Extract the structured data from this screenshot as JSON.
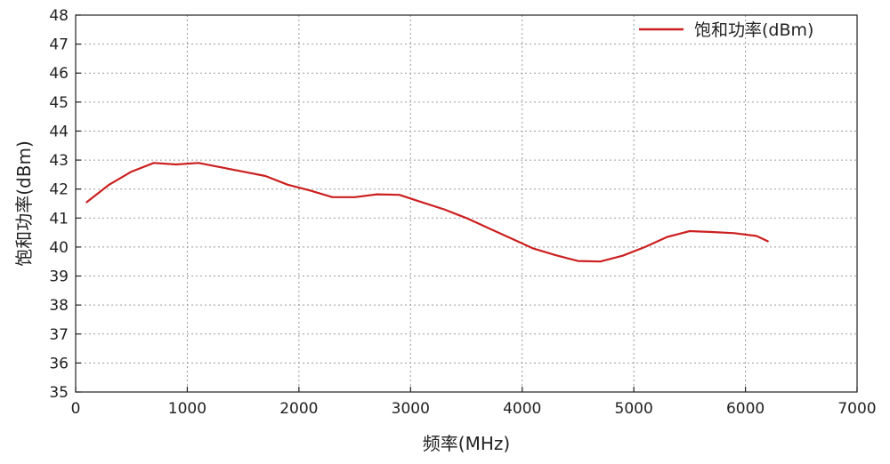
{
  "chart_data": {
    "type": "line",
    "xlabel": "频率(MHz)",
    "ylabel": "饱和功率(dBm)",
    "xlim": [
      0,
      7000
    ],
    "ylim": [
      35,
      48
    ],
    "xticks": [
      0,
      1000,
      2000,
      3000,
      4000,
      5000,
      6000,
      7000
    ],
    "yticks": [
      35,
      36,
      37,
      38,
      39,
      40,
      41,
      42,
      43,
      44,
      45,
      46,
      47,
      48
    ],
    "grid": true,
    "legend_position": "top-right",
    "series": [
      {
        "name": "饱和功率(dBm)",
        "color": "#cc1f1f",
        "x": [
          100,
          300,
          500,
          700,
          900,
          1100,
          1300,
          1500,
          1700,
          1900,
          2100,
          2300,
          2500,
          2700,
          2900,
          3100,
          3300,
          3500,
          3700,
          3900,
          4100,
          4300,
          4500,
          4700,
          4900,
          5100,
          5300,
          5500,
          5700,
          5900,
          6100,
          6200
        ],
        "y": [
          41.55,
          42.15,
          42.6,
          42.9,
          42.85,
          42.9,
          42.75,
          42.6,
          42.45,
          42.15,
          41.95,
          41.72,
          41.72,
          41.82,
          41.8,
          41.55,
          41.3,
          41.0,
          40.65,
          40.3,
          39.95,
          39.72,
          39.52,
          39.5,
          39.7,
          40.0,
          40.35,
          40.55,
          40.52,
          40.48,
          40.38,
          40.2
        ]
      }
    ]
  }
}
